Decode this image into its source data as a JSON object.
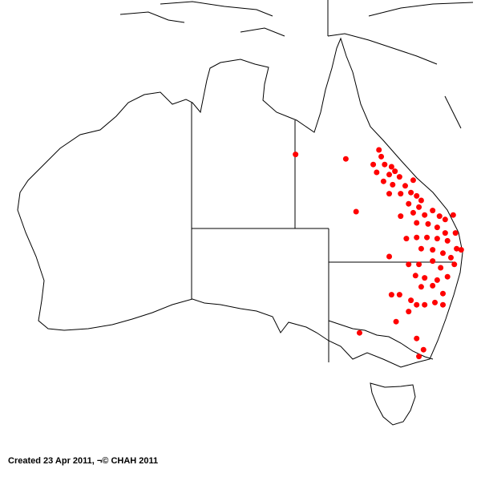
{
  "caption": "Created 23 Apr 2011, ¬© CHAH 2011",
  "colors": {
    "point": "#ff0000",
    "land_outline": "#000000",
    "background": "#ffffff"
  },
  "records": [
    [
      138.1,
      -19.4
    ],
    [
      142.5,
      -19.8
    ],
    [
      143.4,
      -24.5
    ],
    [
      145.4,
      -19.0
    ],
    [
      145.6,
      -19.6
    ],
    [
      144.9,
      -20.3
    ],
    [
      145.9,
      -20.3
    ],
    [
      146.5,
      -20.5
    ],
    [
      146.8,
      -20.9
    ],
    [
      145.2,
      -21.0
    ],
    [
      146.3,
      -21.2
    ],
    [
      147.2,
      -21.4
    ],
    [
      145.8,
      -21.8
    ],
    [
      146.6,
      -22.1
    ],
    [
      147.7,
      -22.2
    ],
    [
      148.4,
      -21.7
    ],
    [
      146.3,
      -22.9
    ],
    [
      147.3,
      -22.9
    ],
    [
      148.2,
      -22.8
    ],
    [
      148.7,
      -23.1
    ],
    [
      149.1,
      -23.5
    ],
    [
      148.0,
      -23.8
    ],
    [
      148.9,
      -24.1
    ],
    [
      148.4,
      -24.6
    ],
    [
      149.4,
      -24.8
    ],
    [
      150.1,
      -24.4
    ],
    [
      150.7,
      -24.9
    ],
    [
      151.2,
      -25.2
    ],
    [
      151.9,
      -24.8
    ],
    [
      147.3,
      -24.9
    ],
    [
      148.7,
      -25.5
    ],
    [
      149.7,
      -25.6
    ],
    [
      150.5,
      -25.9
    ],
    [
      151.2,
      -26.4
    ],
    [
      152.1,
      -26.4
    ],
    [
      147.8,
      -26.9
    ],
    [
      148.7,
      -26.8
    ],
    [
      149.6,
      -26.8
    ],
    [
      150.5,
      -26.9
    ],
    [
      151.4,
      -27.1
    ],
    [
      152.2,
      -27.8
    ],
    [
      152.6,
      -27.9
    ],
    [
      149.1,
      -27.8
    ],
    [
      150.1,
      -27.9
    ],
    [
      151.0,
      -28.2
    ],
    [
      151.7,
      -28.6
    ],
    [
      146.3,
      -28.5
    ],
    [
      148.0,
      -29.2
    ],
    [
      148.9,
      -29.2
    ],
    [
      150.1,
      -28.9
    ],
    [
      150.8,
      -29.5
    ],
    [
      152.0,
      -29.2
    ],
    [
      148.6,
      -30.2
    ],
    [
      149.4,
      -30.4
    ],
    [
      150.5,
      -30.6
    ],
    [
      151.4,
      -30.3
    ],
    [
      149.1,
      -31.2
    ],
    [
      150.1,
      -31.1
    ],
    [
      151.0,
      -31.8
    ],
    [
      146.5,
      -31.9
    ],
    [
      147.2,
      -31.9
    ],
    [
      148.2,
      -32.4
    ],
    [
      148.7,
      -32.8
    ],
    [
      149.4,
      -32.8
    ],
    [
      150.3,
      -32.6
    ],
    [
      151.0,
      -32.8
    ],
    [
      148.0,
      -33.4
    ],
    [
      146.9,
      -34.3
    ],
    [
      143.7,
      -35.3
    ],
    [
      148.7,
      -35.8
    ],
    [
      149.3,
      -36.8
    ],
    [
      148.9,
      -37.4
    ]
  ]
}
